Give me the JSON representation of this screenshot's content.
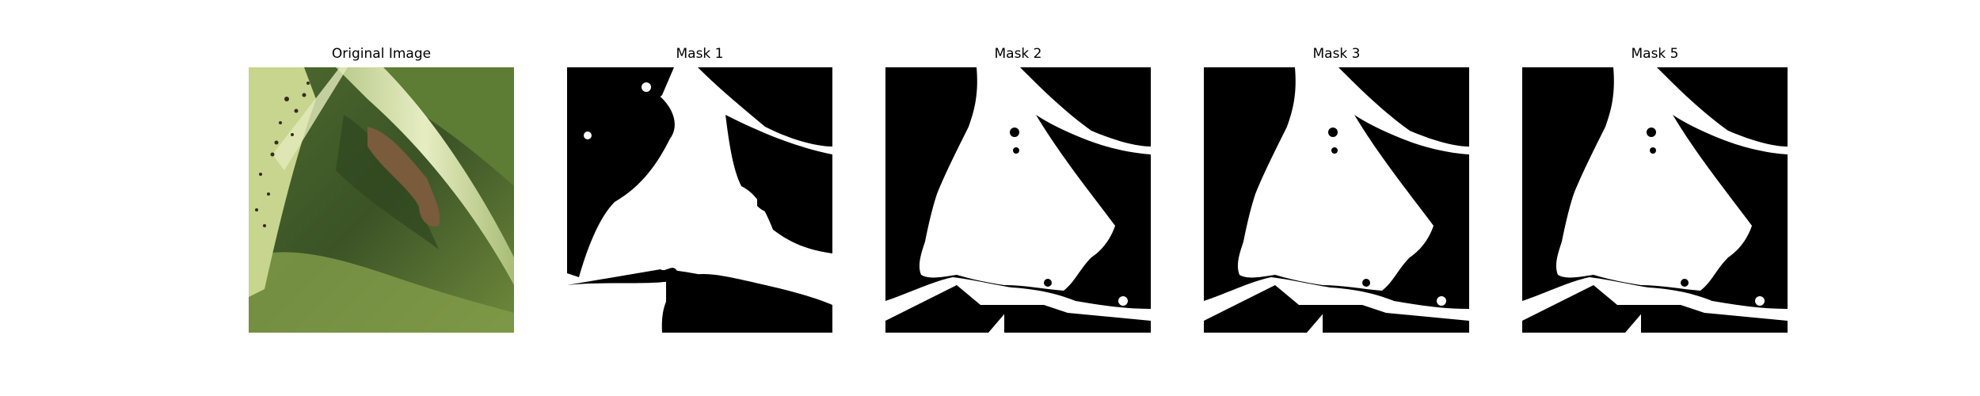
{
  "panels": [
    {
      "title": "Original Image",
      "kind": "photo"
    },
    {
      "title": "Mask 1",
      "kind": "mask"
    },
    {
      "title": "Mask 2",
      "kind": "mask"
    },
    {
      "title": "Mask 3",
      "kind": "mask"
    },
    {
      "title": "Mask 5",
      "kind": "mask"
    }
  ],
  "colors": {
    "mask_foreground": "#ffffff",
    "mask_background": "#000000",
    "leaf_dark": "#3f5a2a",
    "leaf_mid": "#6f8a3c",
    "stem_light": "#d9e4a8",
    "damage_brown": "#7a5b3c"
  }
}
